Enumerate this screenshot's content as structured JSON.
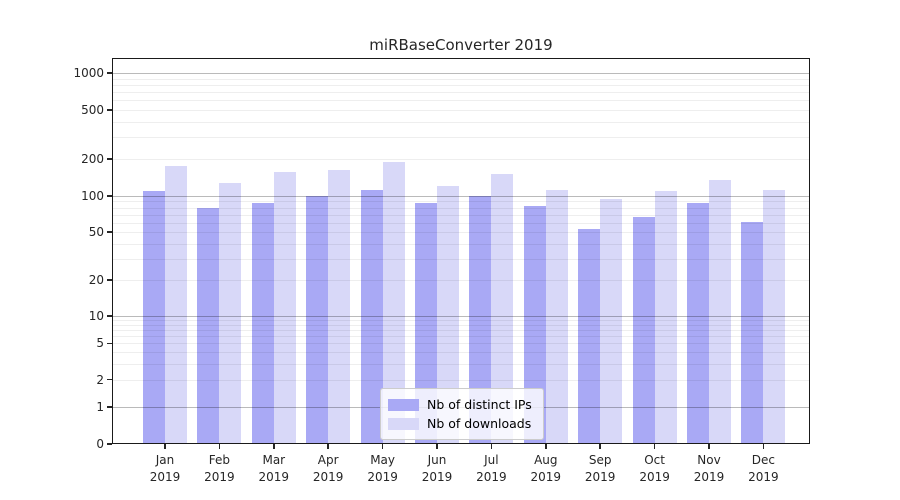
{
  "title": "miRBaseConverter 2019",
  "chart_data": {
    "type": "bar",
    "title": "miRBaseConverter 2019",
    "year": "2019",
    "categories": [
      "Jan",
      "Feb",
      "Mar",
      "Apr",
      "May",
      "Jun",
      "Jul",
      "Aug",
      "Sep",
      "Oct",
      "Nov",
      "Dec"
    ],
    "series": [
      {
        "name": "Nb of distinct IPs",
        "color": "#a9a9f5",
        "values": [
          110,
          80,
          88,
          100,
          112,
          87,
          100,
          83,
          53,
          67,
          88,
          61
        ]
      },
      {
        "name": "Nb of downloads",
        "color": "#d8d8f8",
        "values": [
          175,
          128,
          156,
          164,
          190,
          121,
          151,
          111,
          94,
          109,
          135,
          112
        ]
      }
    ],
    "yscale": "symlog (1-2-5 ticks)",
    "yticks": [
      0,
      1,
      2,
      5,
      10,
      20,
      50,
      100,
      200,
      500,
      1000
    ],
    "ylim": [
      0,
      1300
    ],
    "xlabel": "",
    "ylabel": "",
    "grid": "major and minor horizontal gridlines",
    "legend_position": "lower center inside plot"
  }
}
